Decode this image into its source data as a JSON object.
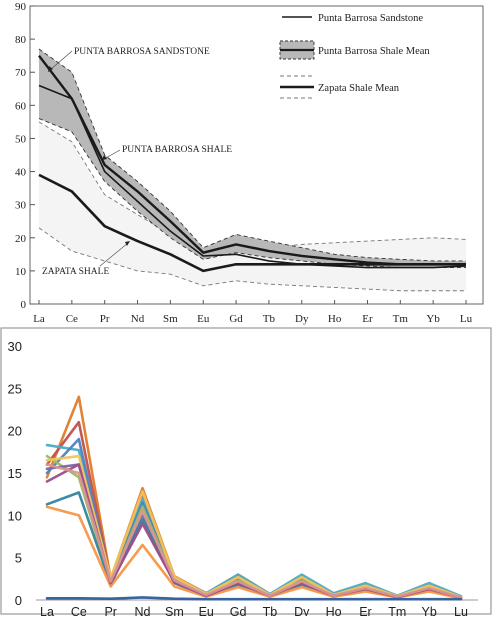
{
  "chart_data": [
    {
      "type": "line",
      "categories": [
        "La",
        "Ce",
        "Pr",
        "Nd",
        "Sm",
        "Eu",
        "Gd",
        "Tb",
        "Dy",
        "Ho",
        "Er",
        "Tm",
        "Yb",
        "Lu"
      ],
      "ylim": [
        0,
        90
      ],
      "yticks": [
        0,
        10,
        20,
        30,
        40,
        50,
        60,
        70,
        80,
        90
      ],
      "grid": false,
      "legend_position": "top-right",
      "legend": [
        "Punta Barrosa Sandstone",
        "Punta Barrosa Shale Mean",
        "Zapata Shale Mean"
      ],
      "annotations": [
        "PUNTA BARROSA SANDSTONE",
        "PUNTA BARROSA SHALE",
        "ZAPATA SHALE"
      ],
      "colors": {
        "line": "#1a1a1a",
        "band": "#b8b8b8",
        "zapata_band": "#f4f4f4",
        "envelope": "#777777"
      },
      "series": [
        {
          "name": "Punta Barrosa Sandstone",
          "values": [
            66,
            62,
            40,
            31,
            22,
            14.5,
            15,
            13,
            12,
            11.5,
            11,
            11,
            11,
            11.5
          ]
        },
        {
          "name": "Punta Barrosa Shale Mean",
          "values": [
            75,
            62,
            42,
            34,
            25,
            15.5,
            18,
            16,
            14.5,
            13.5,
            12.5,
            12,
            12,
            12
          ]
        },
        {
          "name": "Zapata Shale Mean",
          "values": [
            39,
            34,
            23.5,
            19,
            15,
            10,
            12,
            12,
            12,
            12,
            12,
            12,
            12,
            12
          ]
        }
      ],
      "envelopes": {
        "punta_barrosa_shale_upper": [
          77,
          70,
          45,
          37,
          28,
          17,
          21,
          19,
          17,
          15,
          14,
          13.5,
          13,
          13
        ],
        "punta_barrosa_shale_lower": [
          56,
          52,
          37,
          28,
          20,
          13.5,
          15.5,
          14,
          13,
          12,
          11.5,
          11,
          11,
          11
        ],
        "zapata_shale_upper": [
          55,
          49,
          33,
          27,
          21,
          14.5,
          16,
          17,
          18,
          18.5,
          19,
          19.5,
          20,
          19.5
        ],
        "zapata_shale_lower": [
          23,
          16,
          13,
          10,
          9,
          5.5,
          7,
          6,
          5.5,
          5,
          4.5,
          4,
          4,
          4
        ]
      }
    },
    {
      "type": "line",
      "categories": [
        "La",
        "Ce",
        "Pr",
        "Nd",
        "Sm",
        "Eu",
        "Gd",
        "Tb",
        "Dy",
        "Ho",
        "Er",
        "Tm",
        "Yb",
        "Lu"
      ],
      "ylim": [
        0,
        30
      ],
      "yticks": [
        0,
        5,
        10,
        15,
        20,
        25,
        30
      ],
      "grid": false,
      "series": [
        {
          "color": "#e07b29",
          "values": [
            14.5,
            24,
            2.5,
            13.2,
            2.8,
            0.8,
            3.0,
            0.7,
            2.8,
            0.7,
            1.8,
            0.5,
            1.8,
            0.4
          ]
        },
        {
          "color": "#c0504d",
          "values": [
            16,
            21,
            2.4,
            12.5,
            2.6,
            0.7,
            2.6,
            0.6,
            2.5,
            0.6,
            1.6,
            0.4,
            1.6,
            0.35
          ]
        },
        {
          "color": "#4bacc6",
          "values": [
            18.3,
            17.7,
            2.3,
            12,
            2.6,
            0.8,
            3.0,
            0.7,
            3.0,
            0.8,
            2.0,
            0.5,
            2.0,
            0.45
          ]
        },
        {
          "color": "#4f81bd",
          "values": [
            15,
            19,
            2.2,
            11.5,
            2.4,
            0.6,
            2.4,
            0.6,
            2.4,
            0.6,
            1.5,
            0.4,
            1.5,
            0.3
          ]
        },
        {
          "color": "#9bbb59",
          "values": [
            17,
            14.5,
            2.0,
            11,
            2.3,
            0.6,
            2.3,
            0.5,
            2.3,
            0.5,
            1.5,
            0.4,
            1.5,
            0.3
          ]
        },
        {
          "color": "#8064a2",
          "values": [
            15.5,
            16,
            2.1,
            10,
            2.2,
            0.6,
            2.0,
            0.5,
            2.0,
            0.5,
            1.3,
            0.4,
            1.3,
            0.3
          ]
        },
        {
          "color": "#31859c",
          "values": [
            11.3,
            12.7,
            1.8,
            9.5,
            2.0,
            0.5,
            1.8,
            0.4,
            1.8,
            0.4,
            1.2,
            0.3,
            1.2,
            0.25
          ]
        },
        {
          "color": "#f79646",
          "values": [
            11,
            10,
            1.6,
            6.5,
            1.6,
            0.4,
            1.5,
            0.4,
            1.5,
            0.4,
            1.0,
            0.3,
            1.0,
            0.2
          ]
        },
        {
          "color": "#f2c45a",
          "values": [
            16.5,
            17,
            2.6,
            12.8,
            2.7,
            0.7,
            2.7,
            0.6,
            2.7,
            0.6,
            1.7,
            0.45,
            1.7,
            0.35
          ]
        },
        {
          "color": "#9e4c8a",
          "values": [
            14,
            16,
            2.0,
            9.0,
            2.1,
            0.5,
            2.0,
            0.5,
            2.0,
            0.5,
            1.3,
            0.35,
            1.3,
            0.3
          ]
        },
        {
          "color": "#d99694",
          "values": [
            16,
            15,
            2.2,
            10.5,
            2.3,
            0.6,
            2.2,
            0.5,
            2.2,
            0.5,
            1.4,
            0.4,
            1.4,
            0.3
          ]
        },
        {
          "color": "#2e5c9a",
          "values": [
            0.2,
            0.2,
            0.15,
            0.3,
            0.15,
            0.1,
            0.1,
            0.1,
            0.1,
            0.1,
            0.1,
            0.1,
            0.1,
            0.1
          ]
        }
      ]
    }
  ]
}
